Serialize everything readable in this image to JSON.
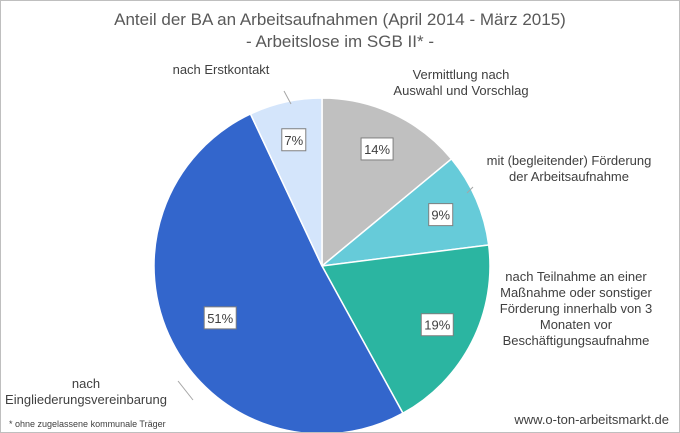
{
  "chart_data": {
    "type": "pie",
    "title": "Anteil der BA an Arbeitsaufnahmen (April 2014 - März 2015)",
    "subtitle": "- Arbeitslose im SGB II* -",
    "slices": [
      {
        "label": "Vermittlung nach Auswahl und Vorschlag",
        "lines": [
          "Vermittlung nach",
          "Auswahl und Vorschlag"
        ],
        "value": 14,
        "value_label": "14%",
        "color": "#c0c0c0"
      },
      {
        "label": "mit (begleitender) Förderung der Arbeitsaufnahme",
        "lines": [
          "mit (begleitender) Förderung",
          "der Arbeitsaufnahme"
        ],
        "value": 9,
        "value_label": "9%",
        "color": "#66cbd9"
      },
      {
        "label": "nach Teilnahme an einer Maßnahme oder sonstiger Förderung innerhalb von 3 Monaten vor Beschäftigungsaufnahme",
        "lines": [
          "nach Teilnahme an einer",
          "Maßnahme oder sonstiger",
          "Förderung innerhalb von 3",
          "Monaten vor",
          "Beschäftigungsaufnahme"
        ],
        "value": 19,
        "value_label": "19%",
        "color": "#2bb5a1"
      },
      {
        "label": "nach Eingliederungsvereinbarung",
        "lines": [
          "nach",
          "Eingliederungsvereinbarung"
        ],
        "value": 51,
        "value_label": "51%",
        "color": "#3366cc"
      },
      {
        "label": "nach Erstkontakt",
        "lines": [
          "nach Erstkontakt"
        ],
        "value": 7,
        "value_label": "7%",
        "color": "#d4e5fb"
      }
    ],
    "start": "12 o'clock",
    "direction": "clockwise",
    "legend": "none"
  },
  "footnote": "* ohne zugelassene kommunale Träger",
  "source": "www.o-ton-arbeitsmarkt.de"
}
